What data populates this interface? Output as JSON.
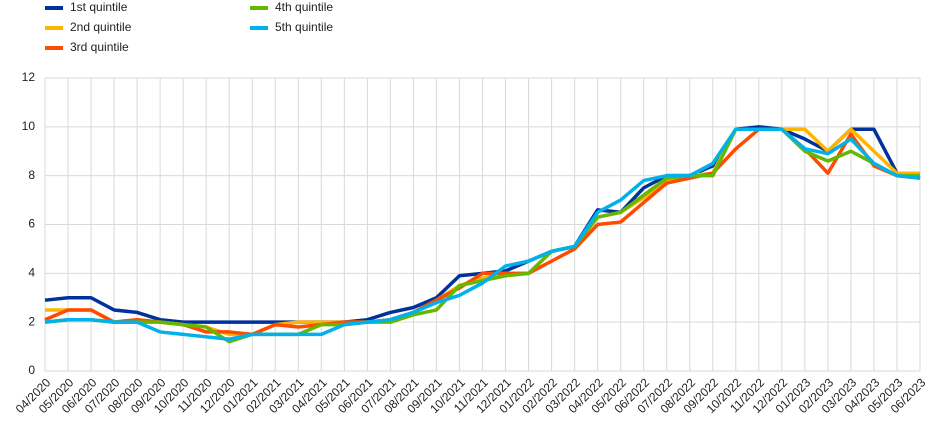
{
  "chart_data": {
    "type": "line",
    "categories": [
      "04/2020",
      "05/2020",
      "06/2020",
      "07/2020",
      "08/2020",
      "09/2020",
      "10/2020",
      "11/2020",
      "12/2020",
      "01/2021",
      "02/2021",
      "03/2021",
      "04/2021",
      "05/2021",
      "06/2021",
      "07/2021",
      "08/2021",
      "09/2021",
      "10/2021",
      "11/2021",
      "12/2021",
      "01/2022",
      "02/2022",
      "03/2022",
      "04/2022",
      "05/2022",
      "06/2022",
      "07/2022",
      "08/2022",
      "09/2022",
      "10/2022",
      "11/2022",
      "12/2022",
      "01/2023",
      "02/2023",
      "03/2023",
      "04/2023",
      "05/2023",
      "06/2023"
    ],
    "series": [
      {
        "name": "1st quintile",
        "color": "#003299",
        "values": [
          2.9,
          3.0,
          3.0,
          2.5,
          2.4,
          2.1,
          2.0,
          2.0,
          2.0,
          2.0,
          2.0,
          2.0,
          2.0,
          2.0,
          2.1,
          2.4,
          2.6,
          3.0,
          3.9,
          4.0,
          4.1,
          4.5,
          4.9,
          5.1,
          6.6,
          6.5,
          7.5,
          8.0,
          8.0,
          8.4,
          9.9,
          10.0,
          9.9,
          9.5,
          9.0,
          9.9,
          9.9,
          8.1,
          7.9
        ]
      },
      {
        "name": "2nd quintile",
        "color": "#ffb400",
        "values": [
          2.5,
          2.5,
          2.5,
          2.0,
          2.1,
          2.0,
          1.9,
          1.8,
          1.5,
          1.5,
          1.9,
          2.0,
          2.0,
          2.0,
          2.0,
          2.1,
          2.4,
          2.9,
          3.5,
          3.8,
          4.0,
          4.0,
          4.9,
          5.1,
          6.3,
          6.5,
          7.1,
          7.8,
          8.0,
          8.1,
          9.9,
          9.9,
          9.9,
          9.9,
          9.0,
          9.9,
          9.0,
          8.1,
          8.1
        ]
      },
      {
        "name": "3rd quintile",
        "color": "#ff4b00",
        "values": [
          2.1,
          2.5,
          2.5,
          2.0,
          2.1,
          2.0,
          1.9,
          1.6,
          1.6,
          1.5,
          1.9,
          1.8,
          1.9,
          2.0,
          2.0,
          2.1,
          2.4,
          2.9,
          3.4,
          4.0,
          4.0,
          4.0,
          4.5,
          5.0,
          6.0,
          6.1,
          6.9,
          7.7,
          7.9,
          8.1,
          9.1,
          9.9,
          9.9,
          9.1,
          8.1,
          9.7,
          8.4,
          8.0,
          7.9
        ]
      },
      {
        "name": "4th quintile",
        "color": "#65b800",
        "values": [
          2.0,
          2.1,
          2.1,
          2.0,
          2.0,
          2.0,
          1.9,
          1.8,
          1.2,
          1.5,
          1.5,
          1.5,
          1.9,
          1.9,
          2.0,
          2.0,
          2.3,
          2.5,
          3.5,
          3.7,
          3.9,
          4.0,
          4.9,
          5.1,
          6.3,
          6.5,
          7.2,
          7.9,
          8.0,
          8.0,
          9.9,
          9.9,
          9.9,
          9.0,
          8.6,
          9.0,
          8.5,
          8.0,
          8.0
        ]
      },
      {
        "name": "5th quintile",
        "color": "#00b1ea",
        "values": [
          2.0,
          2.1,
          2.1,
          2.0,
          2.0,
          1.6,
          1.5,
          1.4,
          1.3,
          1.5,
          1.5,
          1.5,
          1.5,
          1.9,
          2.0,
          2.1,
          2.4,
          2.8,
          3.1,
          3.6,
          4.3,
          4.5,
          4.9,
          5.1,
          6.5,
          7.0,
          7.8,
          8.0,
          8.0,
          8.5,
          9.9,
          9.9,
          9.9,
          9.1,
          8.9,
          9.5,
          8.5,
          8.0,
          7.9
        ]
      }
    ],
    "ylim": [
      0,
      12
    ],
    "yticks": [
      0,
      2,
      4,
      6,
      8,
      10,
      12
    ],
    "grid": true
  }
}
